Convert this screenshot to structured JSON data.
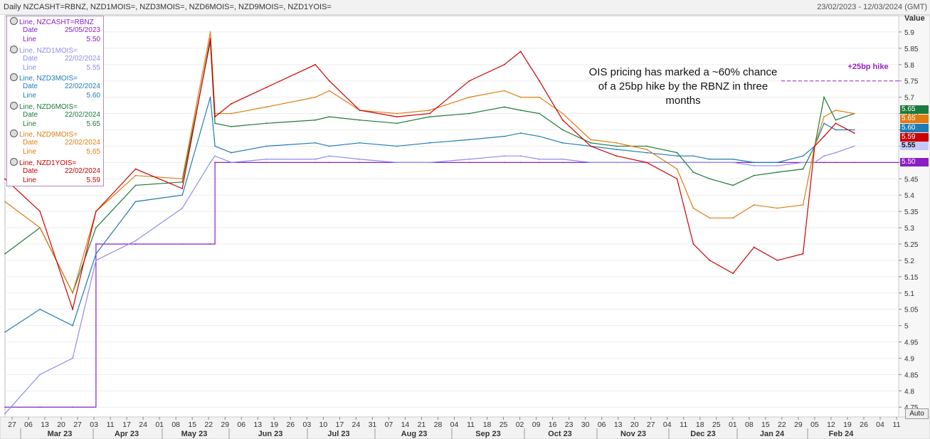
{
  "header": {
    "title": "Daily NZCASHT=RBNZ, NZD1MOIS=, NZD3MOIS=, NZD6MOIS=, NZD9MOIS=, NZD1YOIS=",
    "date_range": "23/02/2023 - 12/03/2024 (GMT)"
  },
  "value_axis_label": "Value",
  "auto_button": "Auto",
  "annotation": "OIS pricing has marked a ~60% chance of a 25bp hike by the RBNZ in three months",
  "hike_label": "+25bp hike",
  "colors": {
    "NZCASHT": "#8a1fc4",
    "NZD1MOIS": "#8c8cef",
    "NZD3MOIS": "#1f7bb5",
    "NZD6MOIS": "#1c7a3a",
    "NZD9MOIS": "#e07b10",
    "NZD1YOIS": "#cc0000"
  },
  "legend": [
    {
      "head": "Line, NZCASHT=RBNZ",
      "date_label": "Date",
      "date": "25/05/2023",
      "line_label": "Line",
      "value": "5.50",
      "color": "#8a1fc4"
    },
    {
      "head": "Line, NZD1MOIS=",
      "date_label": "Date",
      "date": "22/02/2024",
      "line_label": "Line",
      "value": "5.55",
      "color": "#8c8cef"
    },
    {
      "head": "Line, NZD3MOIS=",
      "date_label": "Date",
      "date": "22/02/2024",
      "line_label": "Line",
      "value": "5.60",
      "color": "#1f7bb5"
    },
    {
      "head": "Line, NZD6MOIS=",
      "date_label": "Date",
      "date": "22/02/2024",
      "line_label": "Line",
      "value": "5.65",
      "color": "#1c7a3a"
    },
    {
      "head": "Line, NZD9MOIS=",
      "date_label": "Date",
      "date": "22/02/2024",
      "line_label": "Line",
      "value": "5.65",
      "color": "#e07b10"
    },
    {
      "head": "Line, NZD1YOIS=",
      "date_label": "Date",
      "date": "22/02/2024",
      "line_label": "Line",
      "value": "5.59",
      "color": "#cc0000"
    }
  ],
  "badges": [
    {
      "text": "5.65",
      "value": 5.65,
      "color": "#1c7a3a"
    },
    {
      "text": "5.65",
      "value": 5.65,
      "color": "#e07b10"
    },
    {
      "text": "5.60",
      "value": 5.6,
      "color": "#1f7bb5"
    },
    {
      "text": "5.59",
      "value": 5.59,
      "color": "#cc0000"
    },
    {
      "text": "5.55",
      "value": 5.55,
      "color": "#8c8cef"
    },
    {
      "text": "5.50",
      "value": 5.5,
      "color": "#8a1fc4"
    }
  ],
  "chart_data": {
    "type": "line",
    "ylim": [
      4.72,
      5.95
    ],
    "yticks": [
      4.75,
      4.8,
      4.85,
      4.9,
      4.95,
      5,
      5.05,
      5.1,
      5.15,
      5.2,
      5.25,
      5.3,
      5.35,
      5.4,
      5.45,
      5.5,
      5.55,
      5.6,
      5.65,
      5.7,
      5.75,
      5.8,
      5.85,
      5.9
    ],
    "x_day_ticks": [
      "27",
      "06",
      "13",
      "20",
      "27",
      "03",
      "11",
      "17",
      "24",
      "01",
      "08",
      "15",
      "22",
      "29",
      "06",
      "13",
      "19",
      "26",
      "03",
      "10",
      "17",
      "24",
      "31",
      "07",
      "14",
      "21",
      "28",
      "04",
      "11",
      "18",
      "25",
      "02",
      "09",
      "16",
      "23",
      "30",
      "06",
      "13",
      "20",
      "27",
      "04",
      "11",
      "18",
      "25",
      "01",
      "08",
      "15",
      "22",
      "29",
      "05",
      "12",
      "19",
      "26",
      "04",
      "11"
    ],
    "x_month_labels": [
      "Mar 23",
      "Apr 23",
      "May 23",
      "Jun 23",
      "Jul 23",
      "Aug 23",
      "Sep 23",
      "Oct 23",
      "Nov 23",
      "Dec 23",
      "Jan 24",
      "Feb 24"
    ],
    "reference_line": {
      "value": 5.75,
      "label": "+25bp hike"
    },
    "x_dates": [
      "2023-02-23",
      "2023-03-10",
      "2023-03-24",
      "2023-04-03",
      "2023-04-20",
      "2023-05-10",
      "2023-05-22",
      "2023-05-24",
      "2023-05-31",
      "2023-06-15",
      "2023-07-06",
      "2023-07-12",
      "2023-07-25",
      "2023-08-10",
      "2023-08-24",
      "2023-09-10",
      "2023-09-25",
      "2023-10-02",
      "2023-10-10",
      "2023-10-20",
      "2023-11-01",
      "2023-11-12",
      "2023-11-25",
      "2023-12-08",
      "2023-12-15",
      "2023-12-22",
      "2024-01-01",
      "2024-01-10",
      "2024-01-20",
      "2024-01-31",
      "2024-02-05",
      "2024-02-09",
      "2024-02-14",
      "2024-02-22"
    ],
    "series": [
      {
        "name": "NZCASHT=RBNZ",
        "values": [
          4.75,
          4.75,
          4.75,
          5.25,
          5.25,
          5.25,
          5.25,
          5.5,
          5.5,
          5.5,
          5.5,
          5.5,
          5.5,
          5.5,
          5.5,
          5.5,
          5.5,
          5.5,
          5.5,
          5.5,
          5.5,
          5.5,
          5.5,
          5.5,
          5.5,
          5.5,
          5.5,
          5.5,
          5.5,
          5.5,
          5.5,
          5.5,
          5.5,
          5.5
        ]
      },
      {
        "name": "NZD1MOIS=",
        "values": [
          4.73,
          4.85,
          4.9,
          5.2,
          5.26,
          5.36,
          5.5,
          5.52,
          5.5,
          5.51,
          5.51,
          5.52,
          5.51,
          5.5,
          5.5,
          5.51,
          5.52,
          5.52,
          5.51,
          5.51,
          5.5,
          5.5,
          5.5,
          5.5,
          5.5,
          5.5,
          5.5,
          5.49,
          5.49,
          5.5,
          5.5,
          5.52,
          5.53,
          5.55
        ]
      },
      {
        "name": "NZD3MOIS=",
        "values": [
          4.98,
          5.05,
          5.0,
          5.22,
          5.38,
          5.4,
          5.7,
          5.55,
          5.53,
          5.55,
          5.56,
          5.55,
          5.56,
          5.55,
          5.56,
          5.57,
          5.58,
          5.59,
          5.58,
          5.56,
          5.55,
          5.54,
          5.53,
          5.52,
          5.52,
          5.51,
          5.51,
          5.5,
          5.5,
          5.52,
          5.55,
          5.62,
          5.6,
          5.6
        ]
      },
      {
        "name": "NZD6MOIS=",
        "values": [
          5.22,
          5.3,
          5.1,
          5.3,
          5.43,
          5.44,
          5.87,
          5.62,
          5.61,
          5.62,
          5.63,
          5.64,
          5.63,
          5.62,
          5.64,
          5.65,
          5.67,
          5.66,
          5.65,
          5.6,
          5.56,
          5.55,
          5.55,
          5.53,
          5.47,
          5.45,
          5.43,
          5.46,
          5.47,
          5.48,
          5.55,
          5.7,
          5.63,
          5.65
        ]
      },
      {
        "name": "NZD9MOIS=",
        "values": [
          5.38,
          5.3,
          5.1,
          5.35,
          5.46,
          5.45,
          5.9,
          5.65,
          5.65,
          5.67,
          5.7,
          5.72,
          5.66,
          5.65,
          5.66,
          5.7,
          5.72,
          5.7,
          5.7,
          5.65,
          5.57,
          5.56,
          5.54,
          5.48,
          5.36,
          5.33,
          5.33,
          5.37,
          5.36,
          5.37,
          5.55,
          5.64,
          5.66,
          5.65
        ]
      },
      {
        "name": "NZD1YOIS=",
        "values": [
          5.45,
          5.35,
          5.05,
          5.35,
          5.48,
          5.42,
          5.88,
          5.64,
          5.68,
          5.73,
          5.8,
          5.75,
          5.66,
          5.64,
          5.65,
          5.75,
          5.8,
          5.84,
          5.75,
          5.63,
          5.55,
          5.52,
          5.5,
          5.45,
          5.25,
          5.2,
          5.16,
          5.24,
          5.2,
          5.22,
          5.55,
          5.58,
          5.62,
          5.59
        ]
      }
    ]
  }
}
